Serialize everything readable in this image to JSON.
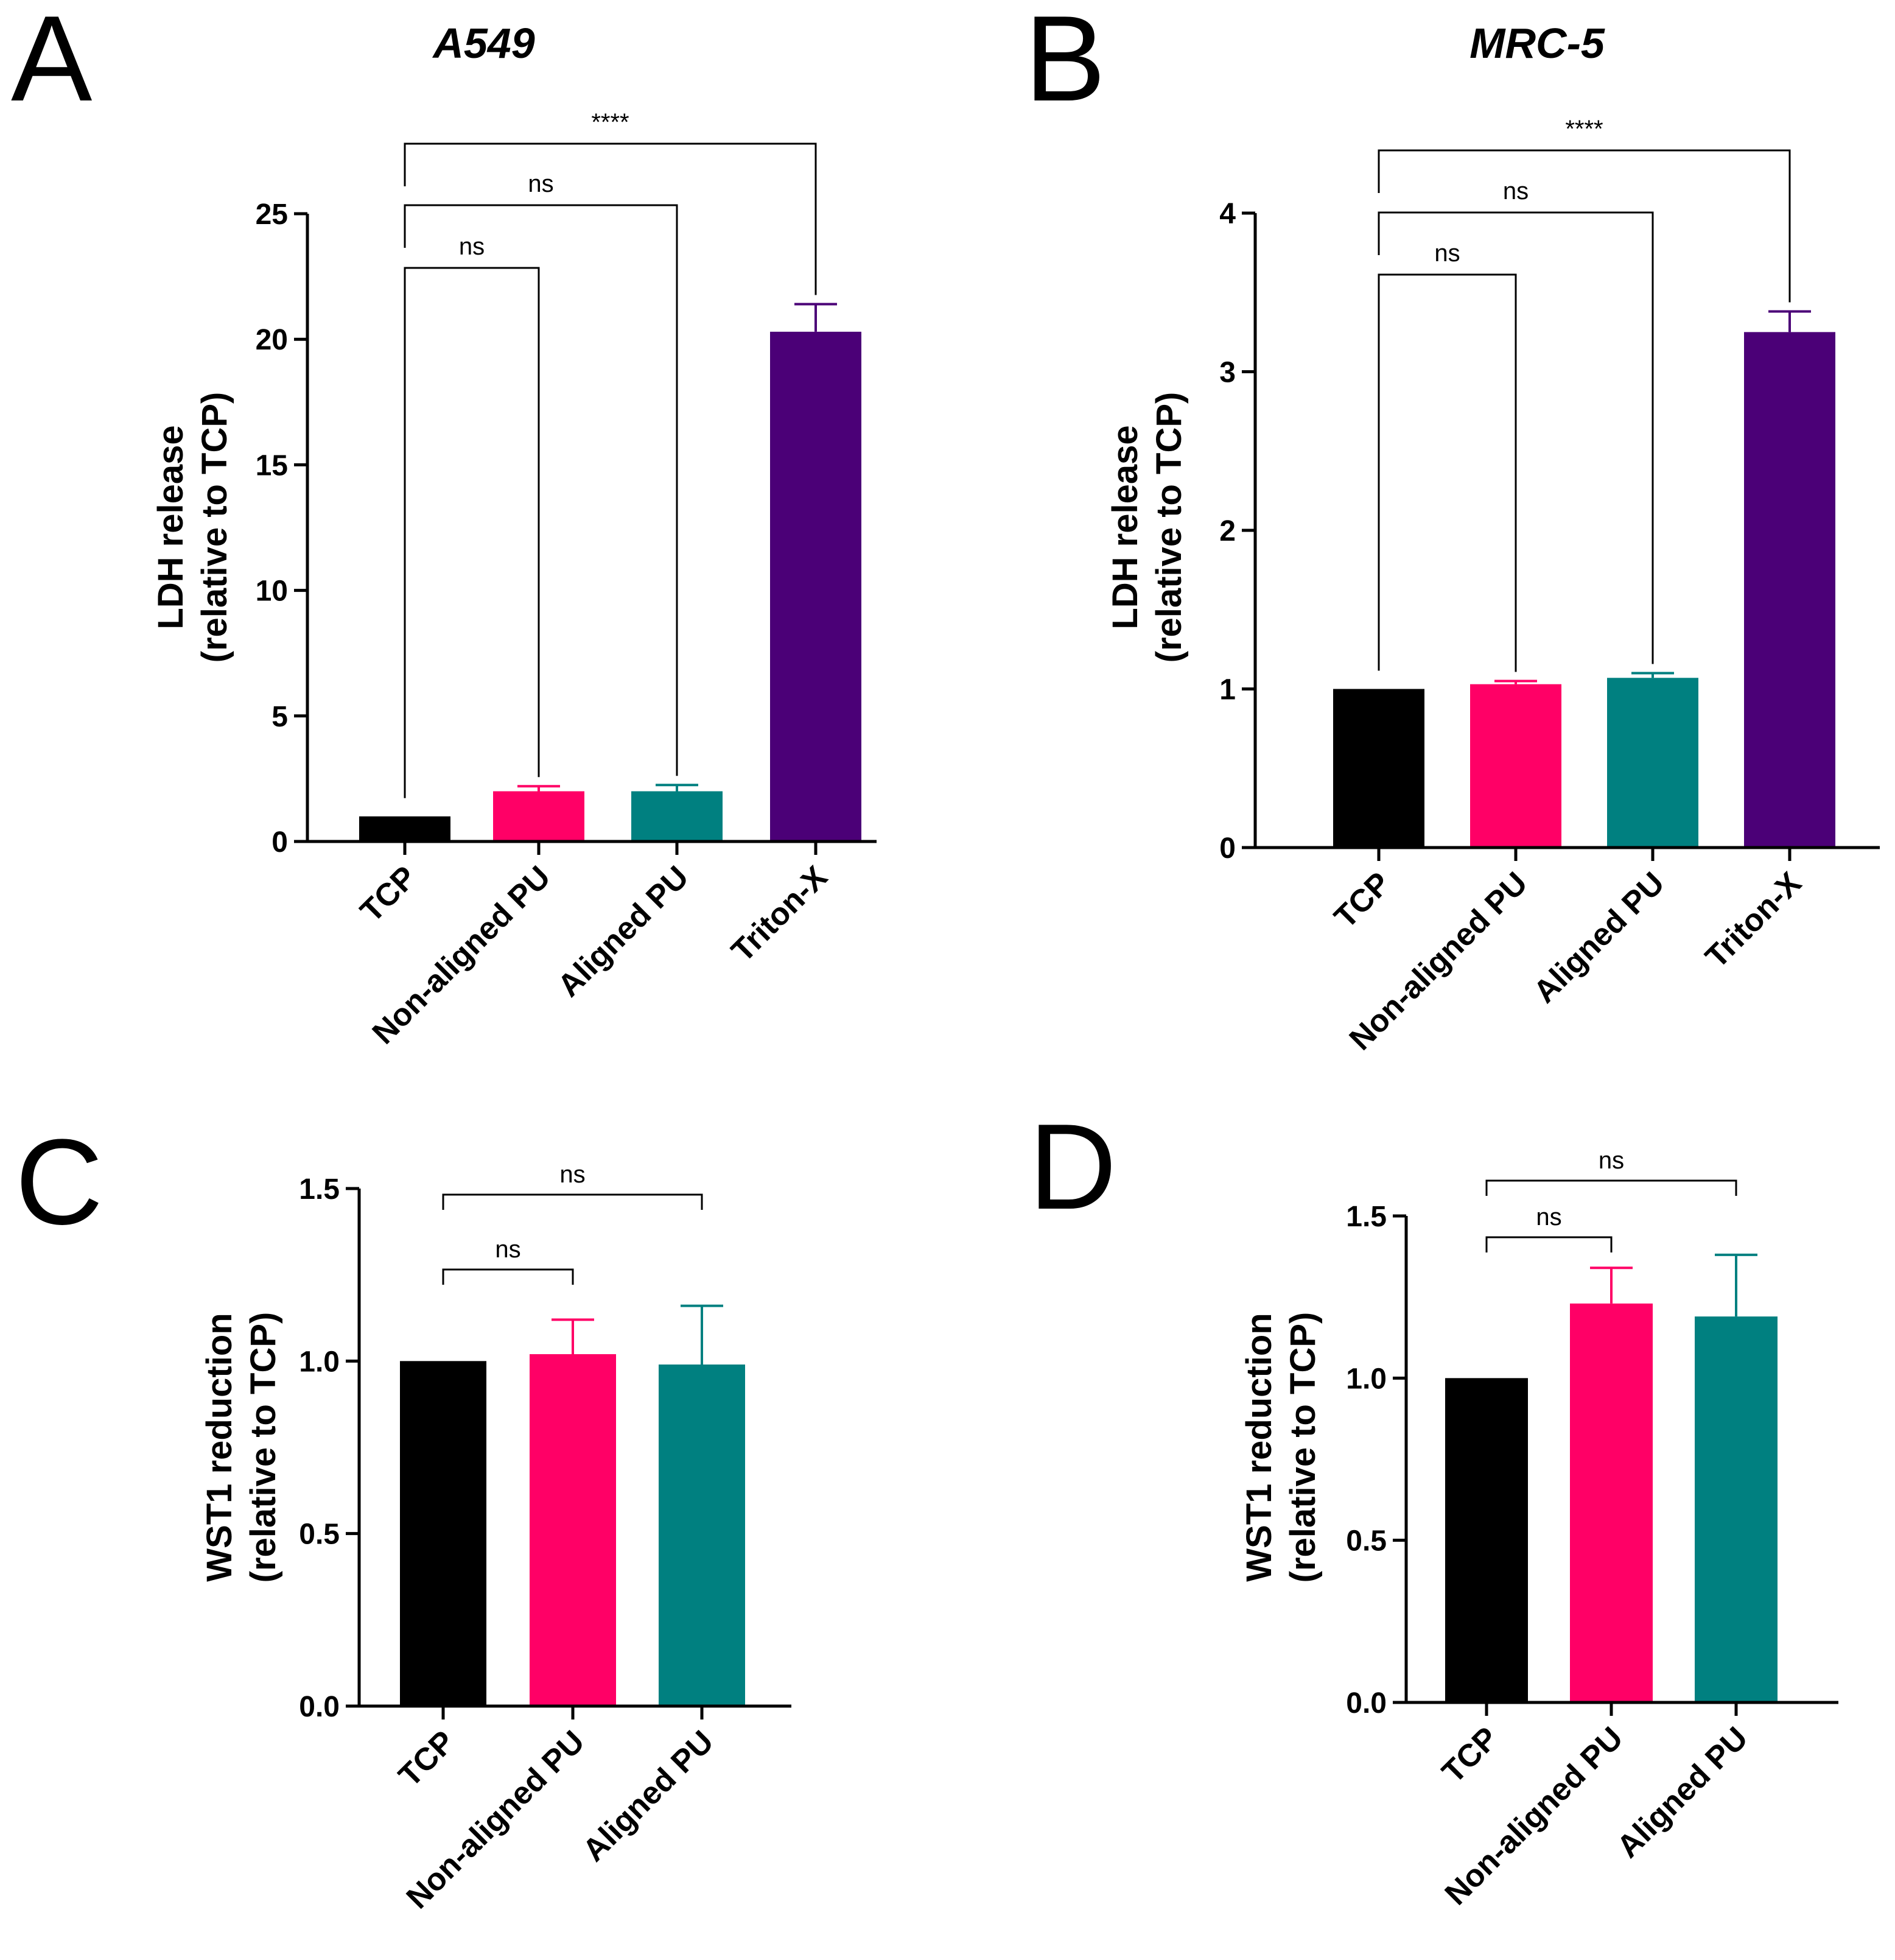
{
  "chart_data": [
    {
      "id": "A",
      "type": "bar",
      "panel_letter": "A",
      "title": "A549",
      "ylabel_line1": "LDH release",
      "ylabel_line2": "(relative to TCP)",
      "categories": [
        "TCP",
        "Non-aligned PU",
        "Aligned PU",
        "Triton-X"
      ],
      "values": [
        1.0,
        2.0,
        2.0,
        20.3
      ],
      "errors": [
        0,
        0.2,
        0.25,
        1.1
      ],
      "colors": [
        "#000000",
        "#ff0066",
        "#008080",
        "#4b0077"
      ],
      "ylim": [
        0,
        25
      ],
      "yticks": [
        0,
        5,
        10,
        15,
        20,
        25
      ],
      "ytick_labels": [
        "0",
        "5",
        "10",
        "15",
        "20",
        "25"
      ],
      "brackets": [
        {
          "from": 0,
          "to": 1,
          "label": "ns"
        },
        {
          "from": 0,
          "to": 2,
          "label": "ns"
        },
        {
          "from": 0,
          "to": 3,
          "label": "****"
        }
      ]
    },
    {
      "id": "B",
      "type": "bar",
      "panel_letter": "B",
      "title": "MRC-5",
      "ylabel_line1": "LDH release",
      "ylabel_line2": "(relative to TCP)",
      "categories": [
        "TCP",
        "Non-aligned PU",
        "Aligned PU",
        "Triton-X"
      ],
      "values": [
        1.0,
        1.03,
        1.07,
        3.25
      ],
      "errors": [
        0,
        0.02,
        0.03,
        0.13
      ],
      "colors": [
        "#000000",
        "#ff0066",
        "#008080",
        "#4b0077"
      ],
      "ylim": [
        0,
        4
      ],
      "yticks": [
        0,
        1,
        2,
        3,
        4
      ],
      "ytick_labels": [
        "0",
        "1",
        "2",
        "3",
        "4"
      ],
      "brackets": [
        {
          "from": 0,
          "to": 1,
          "label": "ns"
        },
        {
          "from": 0,
          "to": 2,
          "label": "ns"
        },
        {
          "from": 0,
          "to": 3,
          "label": "****"
        }
      ]
    },
    {
      "id": "C",
      "type": "bar",
      "panel_letter": "C",
      "title": "",
      "ylabel_line1": "WST1 reduction",
      "ylabel_line2": "(relative to TCP)",
      "categories": [
        "TCP",
        "Non-aligned PU",
        "Aligned PU"
      ],
      "values": [
        1.0,
        1.02,
        0.99
      ],
      "errors": [
        0,
        0.1,
        0.17
      ],
      "colors": [
        "#000000",
        "#ff0066",
        "#008080"
      ],
      "ylim": [
        0,
        1.5
      ],
      "yticks": [
        0,
        0.5,
        1.0,
        1.5
      ],
      "ytick_labels": [
        "0.0",
        "0.5",
        "1.0",
        "1.5"
      ],
      "brackets": [
        {
          "from": 0,
          "to": 1,
          "label": "ns"
        },
        {
          "from": 0,
          "to": 2,
          "label": "ns"
        }
      ]
    },
    {
      "id": "D",
      "type": "bar",
      "panel_letter": "D",
      "title": "",
      "ylabel_line1": "WST1 reduction",
      "ylabel_line2": "(relative to TCP)",
      "categories": [
        "TCP",
        "Non-aligned PU",
        "Aligned PU"
      ],
      "values": [
        1.0,
        1.23,
        1.19
      ],
      "errors": [
        0,
        0.11,
        0.19
      ],
      "colors": [
        "#000000",
        "#ff0066",
        "#008080"
      ],
      "ylim": [
        0,
        1.5
      ],
      "yticks": [
        0,
        0.5,
        1.0,
        1.5
      ],
      "ytick_labels": [
        "0.0",
        "0.5",
        "1.0",
        "1.5"
      ],
      "brackets": [
        {
          "from": 0,
          "to": 1,
          "label": "ns"
        },
        {
          "from": 0,
          "to": 2,
          "label": "ns"
        }
      ]
    }
  ]
}
